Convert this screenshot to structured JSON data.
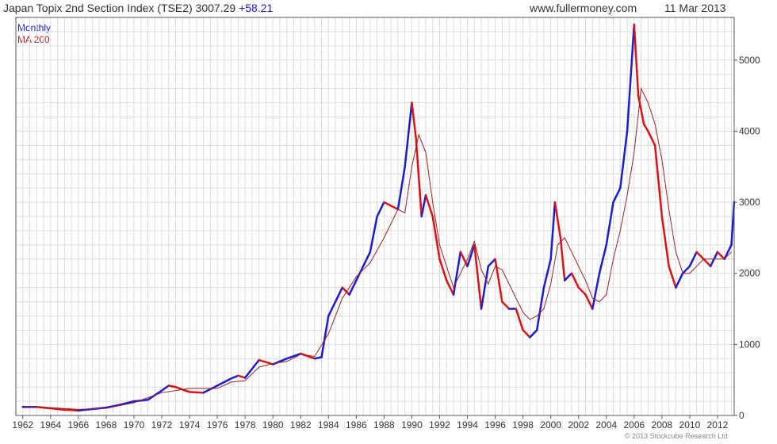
{
  "header": {
    "title": "Japan Topix 2nd Section Index (TSE2) 3007.29",
    "change": "+58.21",
    "site": "www.fullermoney.com",
    "date": "11 Mar 2013"
  },
  "legend": {
    "series1": "Monthly",
    "series2": "MA 200"
  },
  "footer": {
    "copyright": "© 2013 Stockcube Research Ltd"
  },
  "colors": {
    "up": "#1a1ad8",
    "down": "#e01010",
    "ma": "#a02020",
    "grid": "#dcdcdc"
  },
  "chart_data": {
    "type": "line",
    "title": "Japan Topix 2nd Section Index (TSE2)",
    "x_tick_labels": [
      "1962",
      "1964",
      "1966",
      "1968",
      "1970",
      "1972",
      "1974",
      "1976",
      "1978",
      "1980",
      "1982",
      "1984",
      "1986",
      "1988",
      "1990",
      "1992",
      "1994",
      "1996",
      "1998",
      "2000",
      "2002",
      "2004",
      "2006",
      "2008",
      "2010",
      "2012"
    ],
    "y_ticks": [
      0,
      1000,
      2000,
      3000,
      4000,
      5000
    ],
    "xlim": [
      1961.5,
      2013.2
    ],
    "ylim": [
      0,
      5600
    ],
    "y_axis_side": "right",
    "grid": true,
    "legend_position": "top-left",
    "last_value": 3007.29,
    "series": [
      {
        "name": "Monthly",
        "style": "bars",
        "x": [
          1962,
          1963,
          1964,
          1965,
          1966,
          1967,
          1968,
          1969,
          1970,
          1971,
          1972,
          1972.5,
          1973,
          1974,
          1975,
          1976,
          1977,
          1977.5,
          1978,
          1979,
          1980,
          1981,
          1982,
          1983,
          1983.5,
          1984,
          1985,
          1985.5,
          1986,
          1986.5,
          1987,
          1987.5,
          1988,
          1989,
          1989.5,
          1990,
          1990.3,
          1990.7,
          1991,
          1991.5,
          1992,
          1992.5,
          1993,
          1993.5,
          1994,
          1994.5,
          1995,
          1995.5,
          1996,
          1996.5,
          1997,
          1997.5,
          1998,
          1998.5,
          1999,
          1999.5,
          2000,
          2000.3,
          2000.7,
          2001,
          2001.5,
          2002,
          2002.5,
          2003,
          2003.5,
          2004,
          2004.5,
          2005,
          2005.5,
          2006,
          2006.3,
          2006.7,
          2007,
          2007.5,
          2008,
          2008.5,
          2009,
          2009.5,
          2010,
          2010.5,
          2011,
          2011.5,
          2012,
          2012.5,
          2013,
          2013.2
        ],
        "values": [
          120,
          120,
          100,
          80,
          70,
          90,
          110,
          150,
          200,
          220,
          350,
          420,
          400,
          330,
          320,
          420,
          520,
          560,
          530,
          780,
          720,
          800,
          870,
          800,
          820,
          1400,
          1800,
          1700,
          1900,
          2100,
          2300,
          2800,
          3000,
          2900,
          3500,
          4400,
          3900,
          2800,
          3100,
          2800,
          2200,
          1900,
          1700,
          2300,
          2100,
          2400,
          1500,
          2100,
          2200,
          1600,
          1500,
          1500,
          1200,
          1100,
          1200,
          1800,
          2200,
          3000,
          2500,
          1900,
          2000,
          1800,
          1700,
          1500,
          2000,
          2400,
          3000,
          3200,
          4000,
          5500,
          4500,
          4100,
          4000,
          3800,
          2800,
          2100,
          1800,
          2000,
          2100,
          2300,
          2200,
          2100,
          2300,
          2200,
          2400,
          3007
        ]
      },
      {
        "name": "MA 200",
        "style": "line",
        "x": [
          1962,
          1964,
          1966,
          1968,
          1970,
          1972,
          1974,
          1976,
          1977,
          1978,
          1979,
          1980,
          1981,
          1982,
          1983,
          1984,
          1985,
          1986,
          1987,
          1988,
          1989,
          1989.5,
          1990,
          1990.5,
          1991,
          1991.5,
          1992,
          1992.5,
          1993,
          1993.5,
          1994,
          1994.5,
          1995,
          1995.5,
          1996,
          1996.5,
          1997,
          1997.5,
          1998,
          1998.5,
          1999,
          1999.5,
          2000,
          2000.5,
          2001,
          2001.5,
          2002,
          2002.5,
          2003,
          2003.5,
          2004,
          2004.5,
          2005,
          2005.5,
          2006,
          2006.5,
          2007,
          2007.5,
          2008,
          2008.5,
          2009,
          2009.5,
          2010,
          2010.5,
          2011,
          2011.5,
          2012,
          2012.5,
          2013
        ],
        "values": [
          130,
          110,
          85,
          100,
          180,
          320,
          380,
          380,
          470,
          490,
          680,
          730,
          760,
          860,
          830,
          1150,
          1650,
          1950,
          2150,
          2500,
          2900,
          2850,
          3500,
          3950,
          3700,
          3000,
          2400,
          2100,
          1800,
          2000,
          2200,
          2450,
          2050,
          1850,
          2100,
          2050,
          1850,
          1650,
          1450,
          1350,
          1400,
          1500,
          1850,
          2400,
          2500,
          2300,
          2100,
          1900,
          1650,
          1600,
          1700,
          2200,
          2600,
          3100,
          3700,
          4600,
          4400,
          4100,
          3600,
          2900,
          2300,
          2000,
          2000,
          2100,
          2200,
          2200,
          2200,
          2200,
          2300
        ]
      }
    ]
  }
}
